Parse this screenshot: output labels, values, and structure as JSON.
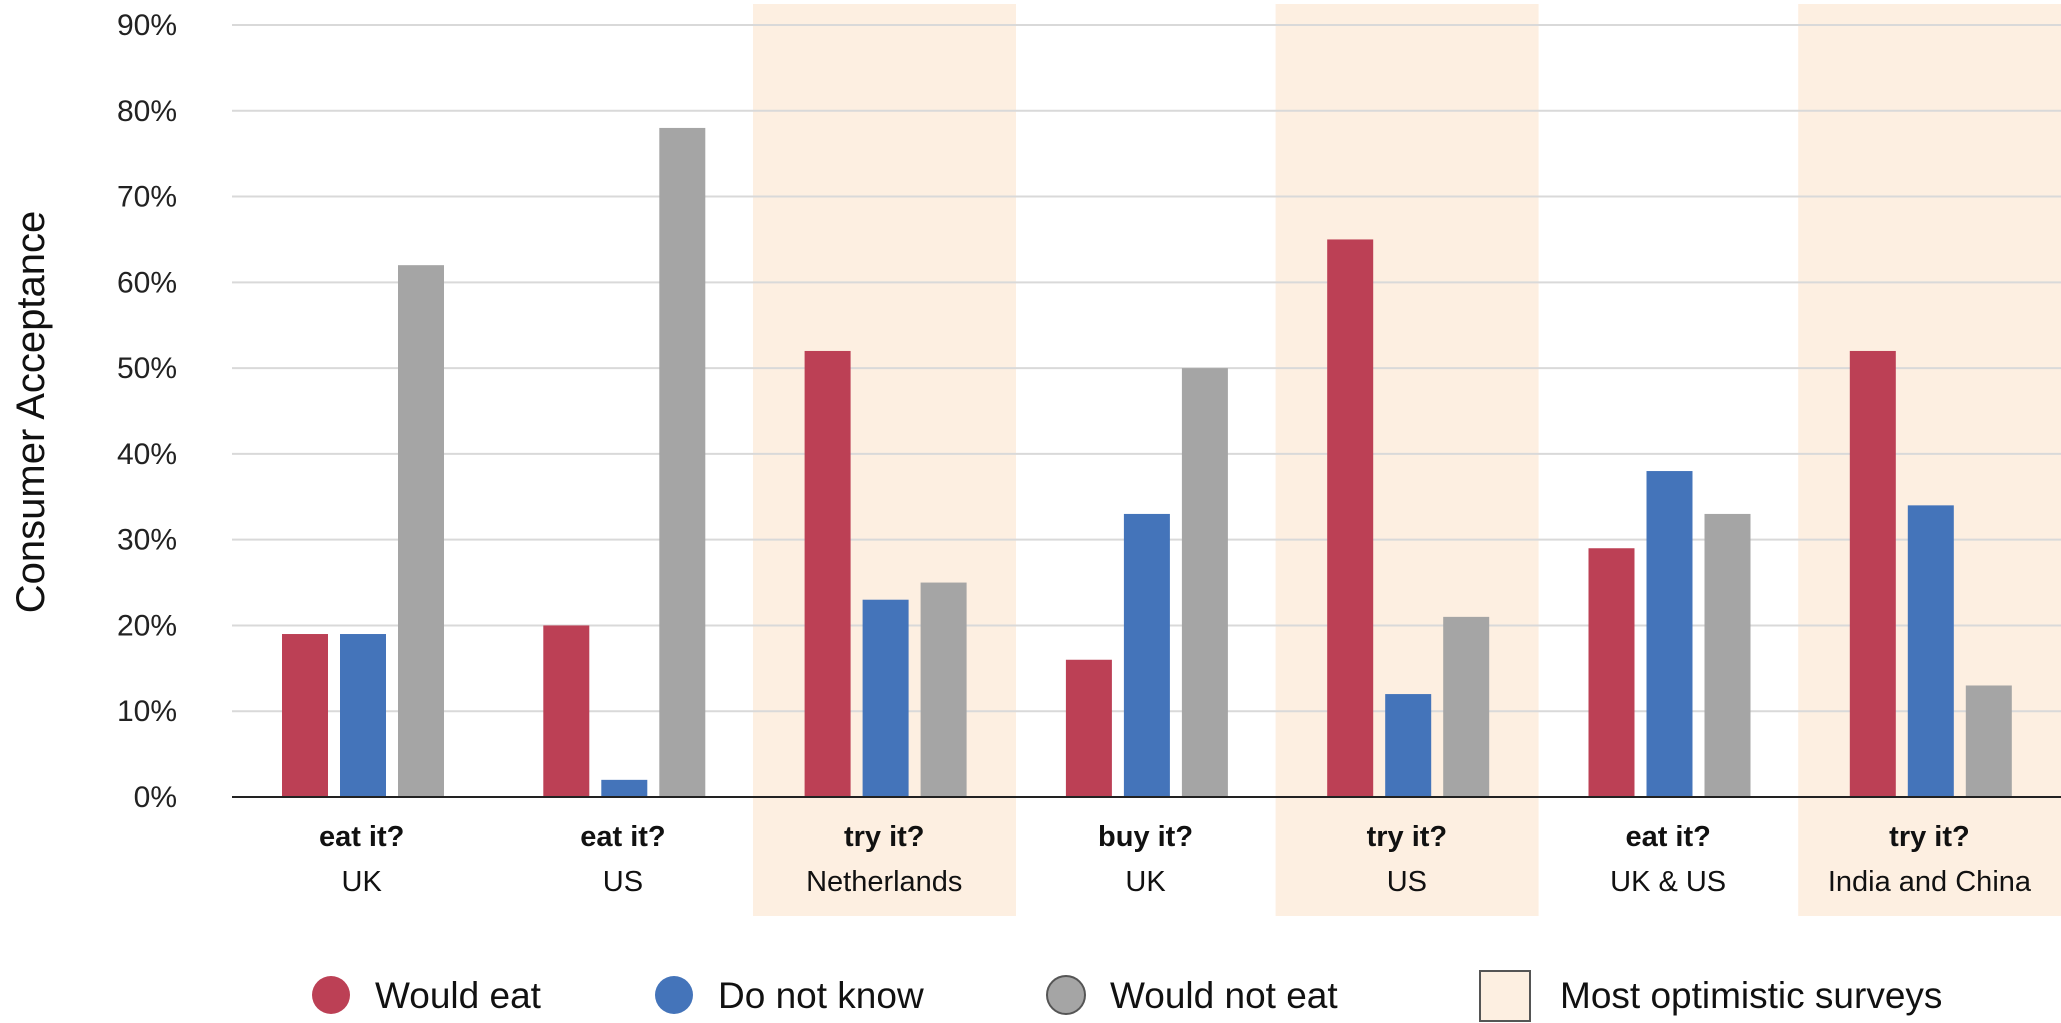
{
  "chart_data": {
    "type": "bar",
    "ylabel": "Consumer Acceptance",
    "xlabel": "",
    "ylim": [
      0,
      90
    ],
    "y_ticks": [
      "0%",
      "10%",
      "20%",
      "30%",
      "40%",
      "50%",
      "60%",
      "70%",
      "80%",
      "90%"
    ],
    "y_tick_values": [
      0,
      10,
      20,
      30,
      40,
      50,
      60,
      70,
      80,
      90
    ],
    "grid": true,
    "categories": [
      {
        "question": "eat it?",
        "region": "UK",
        "highlighted": false
      },
      {
        "question": "eat it?",
        "region": "US",
        "highlighted": false
      },
      {
        "question": "try it?",
        "region": "Netherlands",
        "highlighted": true
      },
      {
        "question": "buy it?",
        "region": "UK",
        "highlighted": false
      },
      {
        "question": "try it?",
        "region": "US",
        "highlighted": true
      },
      {
        "question": "eat it?",
        "region": "UK & US",
        "highlighted": false
      },
      {
        "question": "try it?",
        "region": "India and China",
        "highlighted": true
      }
    ],
    "series": [
      {
        "name": "Would eat",
        "color": "#BC4055",
        "values": [
          19,
          20,
          52,
          16,
          65,
          29,
          52
        ]
      },
      {
        "name": "Do not know",
        "color": "#4474BA",
        "values": [
          19,
          2,
          23,
          33,
          12,
          38,
          34
        ]
      },
      {
        "name": "Would not eat",
        "color": "#A5A5A5",
        "values": [
          62,
          78,
          25,
          50,
          21,
          33,
          13
        ]
      }
    ],
    "highlight": {
      "label": "Most optimistic surveys",
      "color": "#FDEFE1"
    },
    "legend_position": "bottom"
  }
}
